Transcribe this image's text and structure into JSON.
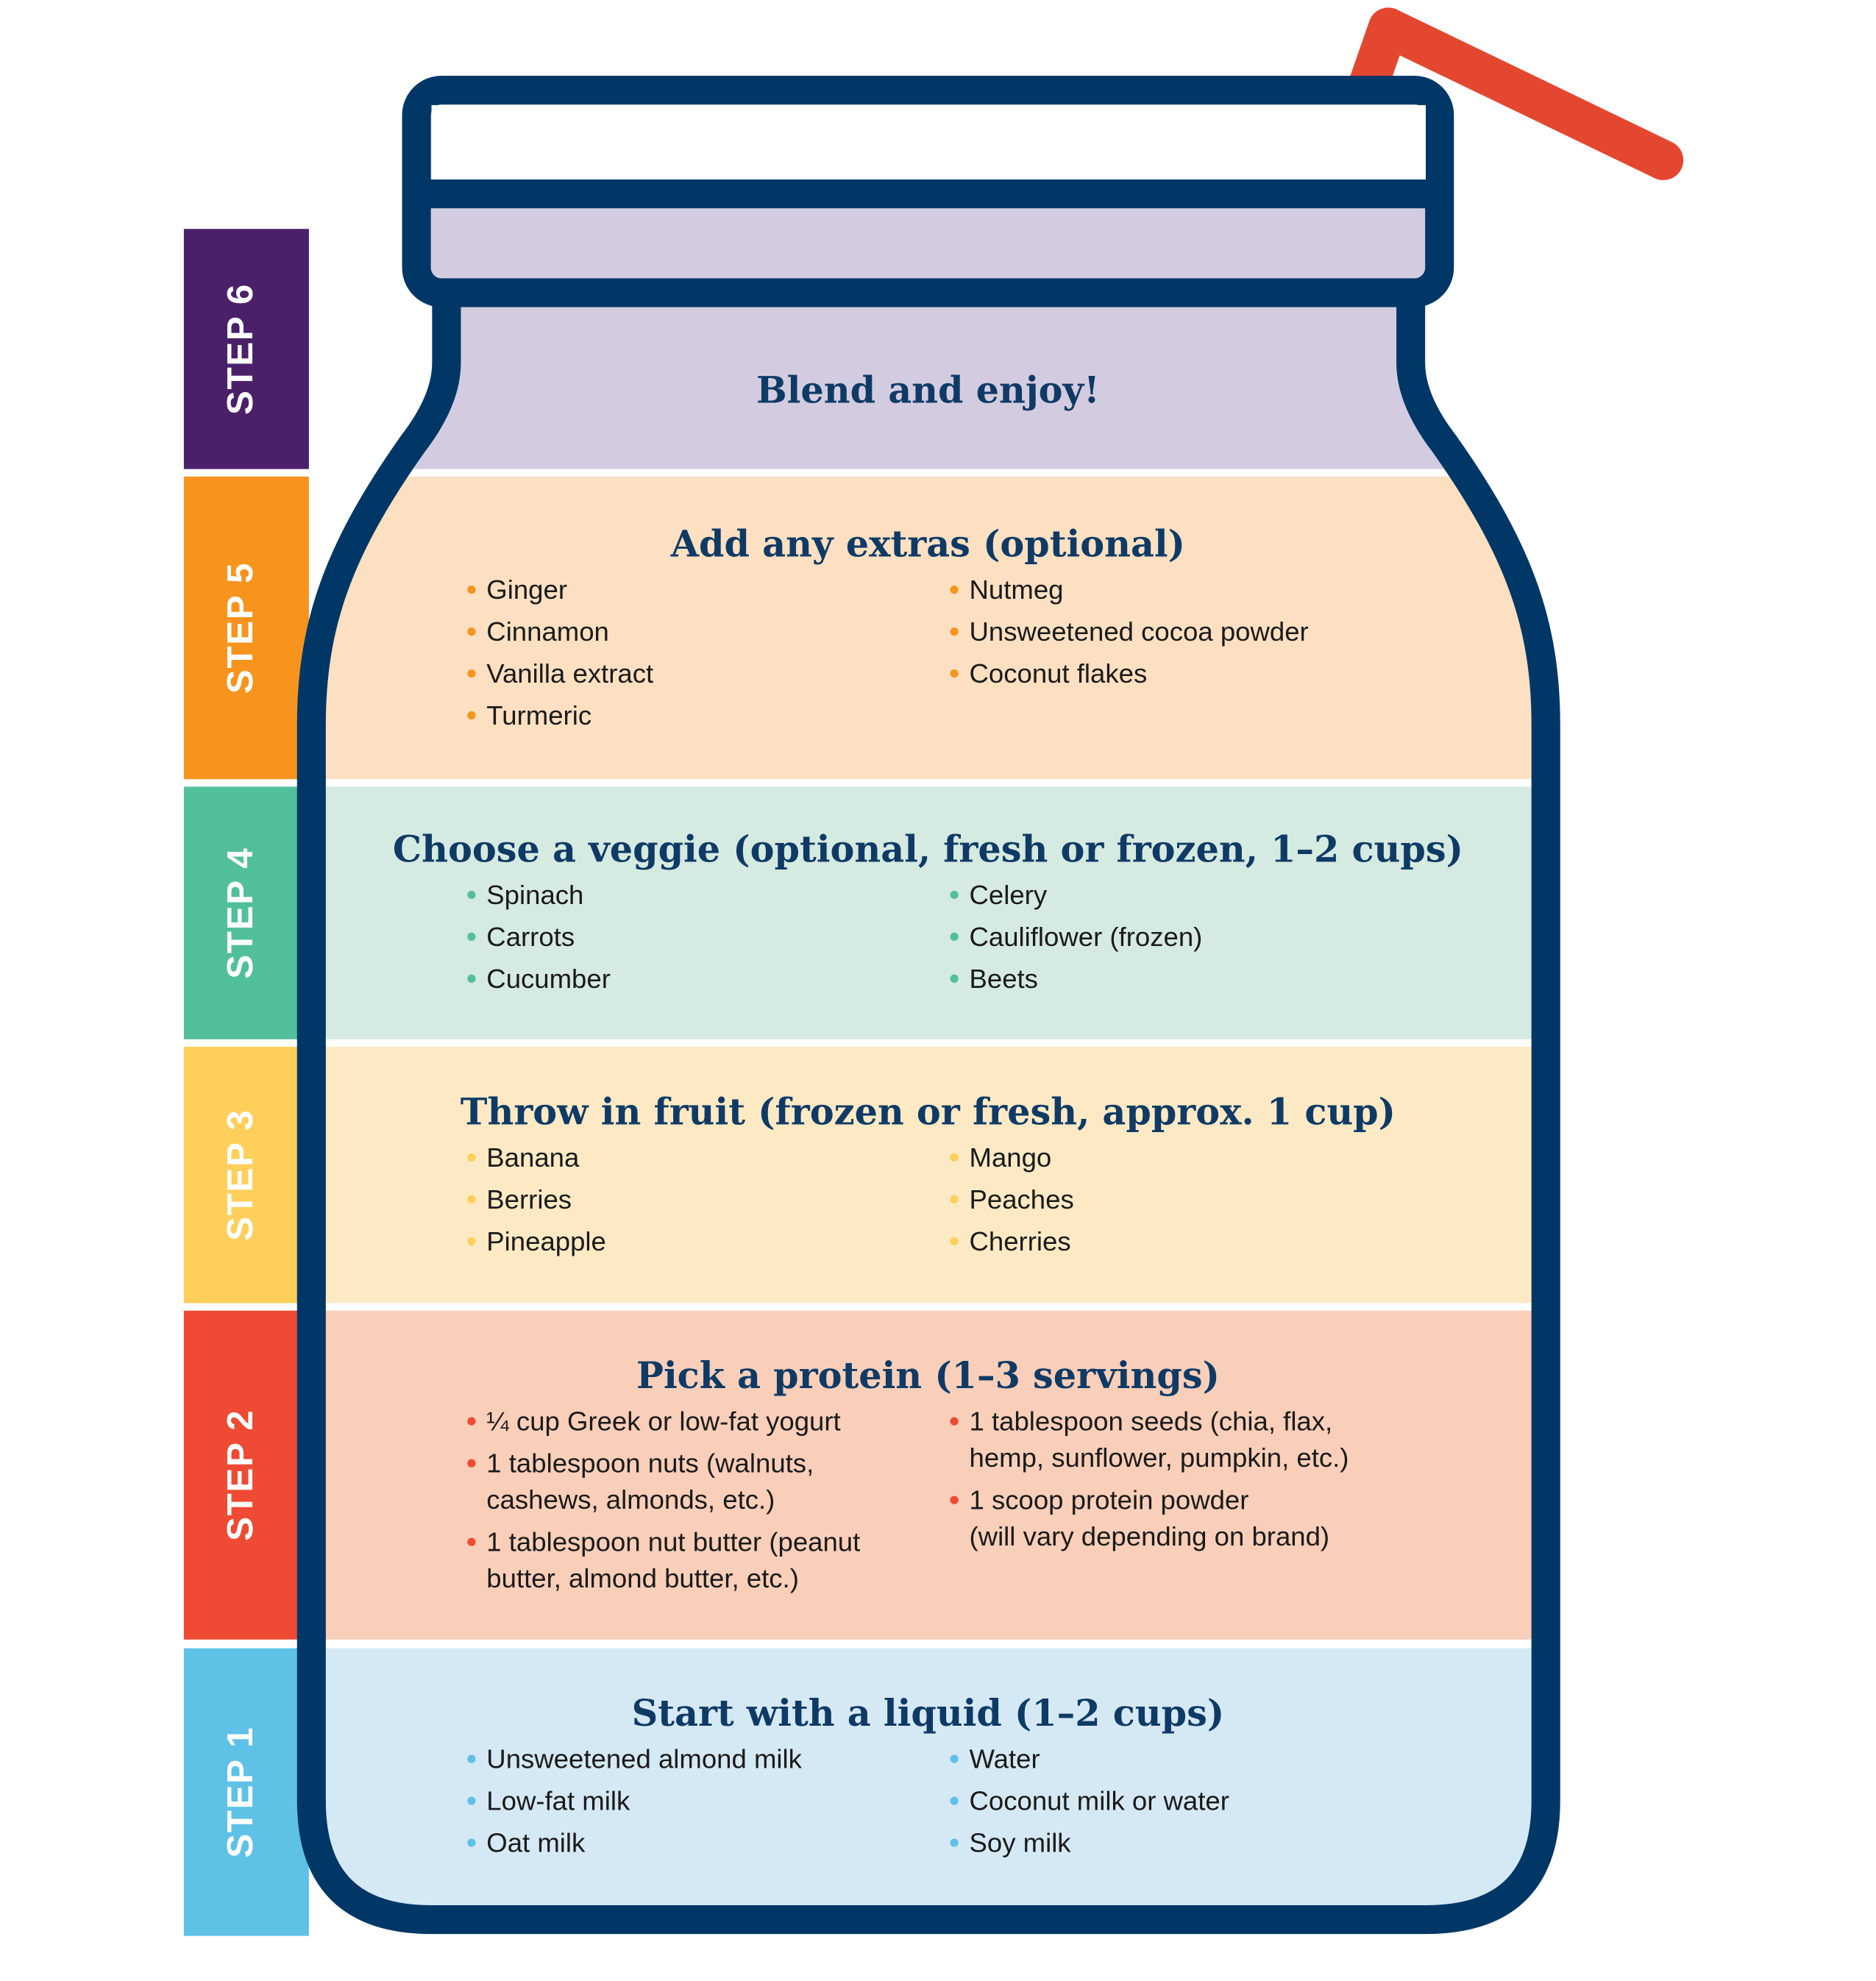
{
  "steps": [
    {
      "tab": "STEP 6",
      "title": "Blend and enjoy!"
    },
    {
      "tab": "STEP 5",
      "title": "Add any extras (optional)",
      "left": [
        "Ginger",
        "Cinnamon",
        "Vanilla extract",
        "Turmeric"
      ],
      "right": [
        "Nutmeg",
        "Unsweetened cocoa powder",
        "Coconut flakes"
      ]
    },
    {
      "tab": "STEP 4",
      "title": "Choose a veggie (optional, fresh or frozen, 1–2 cups)",
      "left": [
        "Spinach",
        "Carrots",
        "Cucumber"
      ],
      "right": [
        "Celery",
        "Cauliflower (frozen)",
        "Beets"
      ]
    },
    {
      "tab": "STEP 3",
      "title": "Throw in fruit (frozen or fresh, approx. 1 cup)",
      "left": [
        "Banana",
        "Berries",
        "Pineapple"
      ],
      "right": [
        "Mango",
        "Peaches",
        "Cherries"
      ]
    },
    {
      "tab": "STEP 2",
      "title": "Pick a protein (1–3 servings)",
      "left": [
        "¼ cup Greek or low-fat yogurt",
        [
          "1 tablespoon nuts (walnuts,",
          "cashews, almonds, etc.)"
        ],
        [
          "1 tablespoon nut butter (peanut",
          "butter, almond butter, etc.)"
        ]
      ],
      "right": [
        [
          "1 tablespoon seeds (chia, flax,",
          "hemp, sunflower, pumpkin, etc.)"
        ],
        [
          "1 scoop protein powder",
          "(will vary depending on brand)"
        ]
      ]
    },
    {
      "tab": "STEP 1",
      "title": "Start with a liquid (1–2 cups)",
      "left": [
        "Unsweetened almond milk",
        "Low-fat milk",
        "Oat milk"
      ],
      "right": [
        "Water",
        "Coconut milk or water",
        "Soy milk"
      ]
    }
  ]
}
